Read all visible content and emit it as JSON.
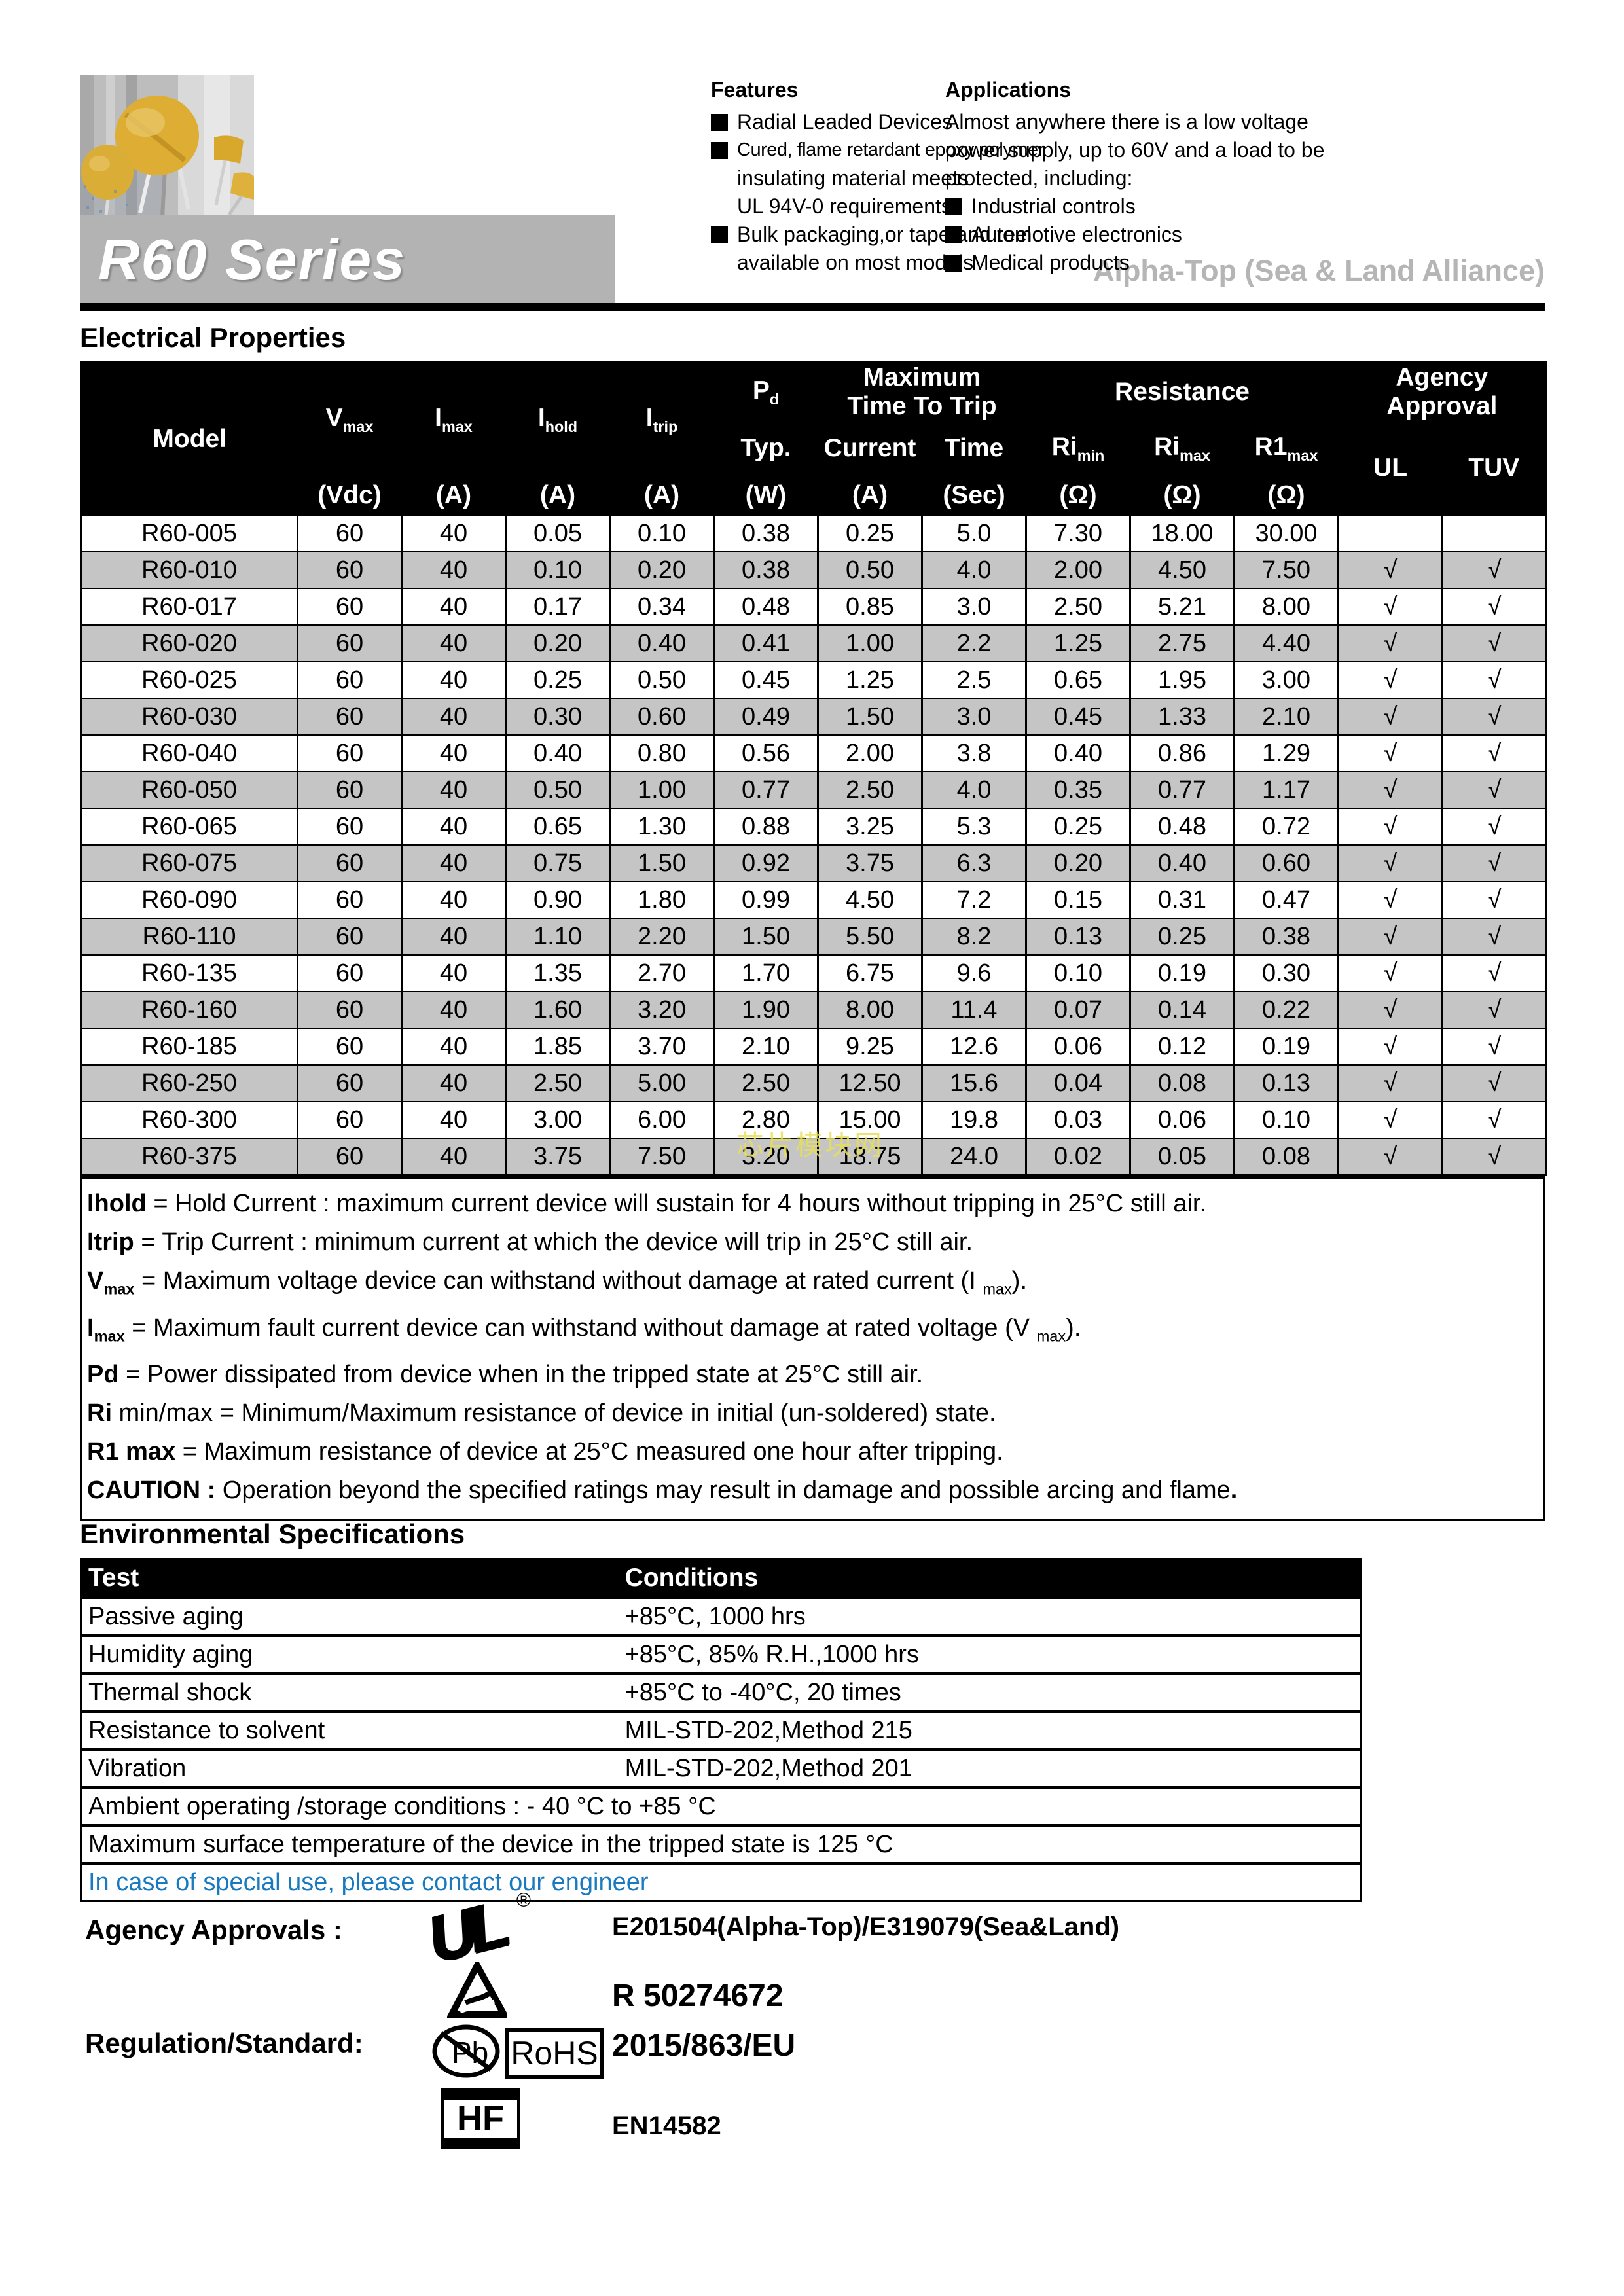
{
  "header": {
    "series_title": "R60 Series",
    "brand": "Alpha-Top (Sea & Land Alliance)"
  },
  "features": {
    "title": "Features",
    "items": [
      {
        "bullet": true,
        "lines": [
          "Radial Leaded Devices"
        ]
      },
      {
        "bullet": true,
        "lines": [
          {
            "t": "Cured, flame retardant epoxy polymer",
            "cls": "cond"
          },
          "insulating material meets",
          "UL 94V-0 requirements"
        ]
      },
      {
        "bullet": true,
        "lines": [
          "Bulk packaging,or tape and reel",
          "available on most models"
        ]
      }
    ]
  },
  "applications": {
    "title": "Applications",
    "items": [
      {
        "bullet": false,
        "lines": [
          "Almost anywhere there is a low voltage",
          "power supply, up to 60V and a load to be",
          "protected, including:"
        ]
      },
      {
        "bullet": true,
        "lines": [
          "Industrial controls"
        ]
      },
      {
        "bullet": true,
        "lines": [
          "Automotive electronics"
        ]
      },
      {
        "bullet": true,
        "lines": [
          "Medical products"
        ]
      }
    ]
  },
  "electrical": {
    "title": "Electrical Properties",
    "columns": {
      "model": "Model",
      "vmax": {
        "b": "V",
        "s": "max"
      },
      "imax": {
        "b": "I",
        "s": "max"
      },
      "ihold": {
        "b": "I",
        "s": "hold"
      },
      "itrip": {
        "b": "I",
        "s": "trip"
      },
      "pd": {
        "b": "P",
        "s": "d"
      },
      "pd_typ": "Typ.",
      "mtt": {
        "l1": "Maximum",
        "l2": "Time To Trip"
      },
      "current": "Current",
      "time": "Time",
      "resistance": "Resistance",
      "rimin": {
        "b": "Ri",
        "s": "min"
      },
      "rimax": {
        "b": "Ri",
        "s": "max"
      },
      "r1max": {
        "b": "R1",
        "s": "max"
      },
      "agency": {
        "l1": "Agency",
        "l2": "Approval"
      },
      "ul": "UL",
      "tuv": "TUV",
      "units": {
        "vdc": "(Vdc)",
        "a": "(A)",
        "w": "(W)",
        "sec": "(Sec)",
        "ohm": "(Ω)"
      }
    },
    "rows": [
      [
        "R60-005",
        "60",
        "40",
        "0.05",
        "0.10",
        "0.38",
        "0.25",
        "5.0",
        "7.30",
        "18.00",
        "30.00",
        "",
        ""
      ],
      [
        "R60-010",
        "60",
        "40",
        "0.10",
        "0.20",
        "0.38",
        "0.50",
        "4.0",
        "2.00",
        "4.50",
        "7.50",
        "√",
        "√"
      ],
      [
        "R60-017",
        "60",
        "40",
        "0.17",
        "0.34",
        "0.48",
        "0.85",
        "3.0",
        "2.50",
        "5.21",
        "8.00",
        "√",
        "√"
      ],
      [
        "R60-020",
        "60",
        "40",
        "0.20",
        "0.40",
        "0.41",
        "1.00",
        "2.2",
        "1.25",
        "2.75",
        "4.40",
        "√",
        "√"
      ],
      [
        "R60-025",
        "60",
        "40",
        "0.25",
        "0.50",
        "0.45",
        "1.25",
        "2.5",
        "0.65",
        "1.95",
        "3.00",
        "√",
        "√"
      ],
      [
        "R60-030",
        "60",
        "40",
        "0.30",
        "0.60",
        "0.49",
        "1.50",
        "3.0",
        "0.45",
        "1.33",
        "2.10",
        "√",
        "√"
      ],
      [
        "R60-040",
        "60",
        "40",
        "0.40",
        "0.80",
        "0.56",
        "2.00",
        "3.8",
        "0.40",
        "0.86",
        "1.29",
        "√",
        "√"
      ],
      [
        "R60-050",
        "60",
        "40",
        "0.50",
        "1.00",
        "0.77",
        "2.50",
        "4.0",
        "0.35",
        "0.77",
        "1.17",
        "√",
        "√"
      ],
      [
        "R60-065",
        "60",
        "40",
        "0.65",
        "1.30",
        "0.88",
        "3.25",
        "5.3",
        "0.25",
        "0.48",
        "0.72",
        "√",
        "√"
      ],
      [
        "R60-075",
        "60",
        "40",
        "0.75",
        "1.50",
        "0.92",
        "3.75",
        "6.3",
        "0.20",
        "0.40",
        "0.60",
        "√",
        "√"
      ],
      [
        "R60-090",
        "60",
        "40",
        "0.90",
        "1.80",
        "0.99",
        "4.50",
        "7.2",
        "0.15",
        "0.31",
        "0.47",
        "√",
        "√"
      ],
      [
        "R60-110",
        "60",
        "40",
        "1.10",
        "2.20",
        "1.50",
        "5.50",
        "8.2",
        "0.13",
        "0.25",
        "0.38",
        "√",
        "√"
      ],
      [
        "R60-135",
        "60",
        "40",
        "1.35",
        "2.70",
        "1.70",
        "6.75",
        "9.6",
        "0.10",
        "0.19",
        "0.30",
        "√",
        "√"
      ],
      [
        "R60-160",
        "60",
        "40",
        "1.60",
        "3.20",
        "1.90",
        "8.00",
        "11.4",
        "0.07",
        "0.14",
        "0.22",
        "√",
        "√"
      ],
      [
        "R60-185",
        "60",
        "40",
        "1.85",
        "3.70",
        "2.10",
        "9.25",
        "12.6",
        "0.06",
        "0.12",
        "0.19",
        "√",
        "√"
      ],
      [
        "R60-250",
        "60",
        "40",
        "2.50",
        "5.00",
        "2.50",
        "12.50",
        "15.6",
        "0.04",
        "0.08",
        "0.13",
        "√",
        "√"
      ],
      [
        "R60-300",
        "60",
        "40",
        "3.00",
        "6.00",
        "2.80",
        "15.00",
        "19.8",
        "0.03",
        "0.06",
        "0.10",
        "√",
        "√"
      ],
      [
        "R60-375",
        "60",
        "40",
        "3.75",
        "7.50",
        "3.20",
        "18.75",
        "24.0",
        "0.02",
        "0.05",
        "0.08",
        "√",
        "√"
      ]
    ],
    "notes": [
      [
        {
          "t": "Ihold",
          "s": "b"
        },
        {
          "t": "  = Hold Current : maximum current device will sustain for 4 hours without tripping in 25°C still air.",
          "s": "n"
        }
      ],
      [
        {
          "t": "Itrip",
          "s": "b"
        },
        {
          "t": "   = Trip Current : minimum current at which the device will trip in 25°C still air.",
          "s": "n"
        }
      ],
      [
        {
          "t": "V",
          "s": "b"
        },
        {
          "t": "max",
          "s": "bsub"
        },
        {
          "t": " = Maximum voltage device can withstand without damage at rated current (I ",
          "s": "n"
        },
        {
          "t": "max",
          "s": "sub"
        },
        {
          "t": ").",
          "s": "n"
        }
      ],
      [
        {
          "t": "I",
          "s": "b"
        },
        {
          "t": "max",
          "s": "bsub"
        },
        {
          "t": "  = Maximum fault current device can withstand without damage at rated voltage (V ",
          "s": "n"
        },
        {
          "t": "max",
          "s": "sub"
        },
        {
          "t": ").",
          "s": "n"
        }
      ],
      [
        {
          "t": "Pd",
          "s": "b"
        },
        {
          "t": "   = Power dissipated from device when in the tripped state at 25°C still air.",
          "s": "n"
        }
      ],
      [
        {
          "t": "Ri",
          "s": "b"
        },
        {
          "t": " min/max  = Minimum/Maximum resistance of device in initial (un-soldered) state.",
          "s": "n"
        }
      ],
      [
        {
          "t": "R1 max",
          "s": "b"
        },
        {
          "t": "   = Maximum resistance of device at 25°C measured one hour after tripping.",
          "s": "n"
        }
      ],
      [
        {
          "t": "CAUTION :",
          "s": "b"
        },
        {
          "t": " Operation beyond the specified ratings may result in damage and possible arcing and flame",
          "s": "n"
        },
        {
          "t": ".",
          "s": "b"
        }
      ]
    ]
  },
  "environmental": {
    "title": "Environmental Specifications",
    "header": {
      "test": "Test",
      "conditions": "Conditions"
    },
    "rows": [
      {
        "test": "Passive aging",
        "cond": "+85°C, 1000 hrs"
      },
      {
        "test": "Humidity aging",
        "cond": "+85°C, 85% R.H.,1000 hrs"
      },
      {
        "test": "Thermal shock",
        "cond": "+85°C to -40°C, 20 times"
      },
      {
        "test": "Resistance to solvent",
        "cond": "MIL-STD-202,Method 215"
      },
      {
        "test": "Vibration",
        "cond": "MIL-STD-202,Method 201"
      }
    ],
    "full_rows": [
      {
        "text": "Ambient operating /storage conditions :   - 40 °C to +85 °C",
        "blue": false
      },
      {
        "text": "Maximum surface temperature of the device in the tripped state is 125 °C",
        "blue": false
      },
      {
        "text": "In case of special use, please contact our engineer",
        "blue": true
      }
    ]
  },
  "agency": {
    "approvals_label": "Agency Approvals :",
    "regulation_label": "Regulation/Standard:",
    "ul_number": "E201504(Alpha-Top)/E319079(Sea&Land)",
    "tuv_number": "R 50274672",
    "rohs_number": "2015/863/EU",
    "hf_number": "EN14582",
    "logos": {
      "ul": "UL",
      "reg": "®",
      "pb": "Pb",
      "rohs": "RoHS",
      "hf": "HF"
    }
  },
  "watermark": {
    "text": "芯片模块网",
    "color": "#e8e058"
  },
  "colors": {
    "row_alt": "#c5c5c5",
    "banner_gray": "#b3b3b3",
    "blue_note": "#1a7abf"
  }
}
